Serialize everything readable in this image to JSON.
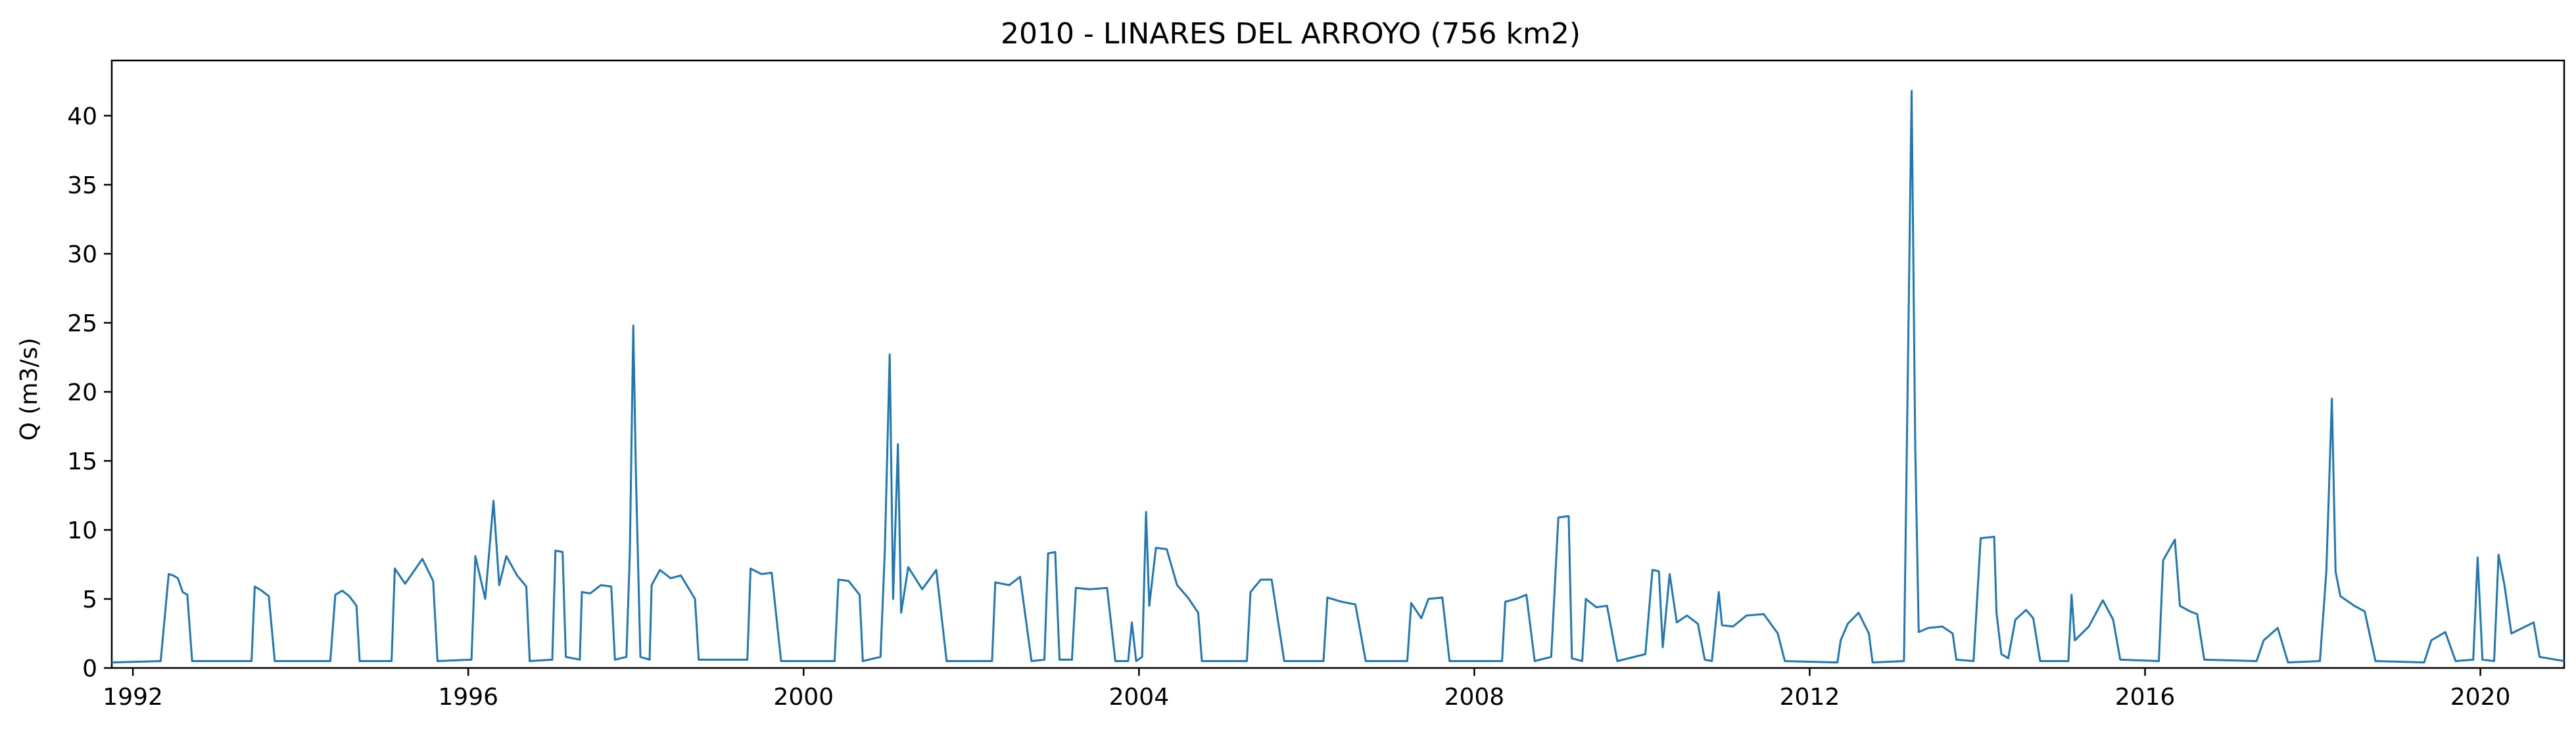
{
  "chart_data": {
    "type": "line",
    "title": "2010 - LINARES DEL ARROYO (756 km2)",
    "xlabel": "",
    "ylabel": "Q (m3/s)",
    "xlim": [
      "1991-10-01",
      "2020-12-31"
    ],
    "ylim": [
      0,
      44
    ],
    "x_tick_labels": [
      "1992",
      "1996",
      "2000",
      "2004",
      "2008",
      "2012",
      "2016",
      "2020"
    ],
    "y_tick_labels": [
      "0",
      "5",
      "10",
      "15",
      "20",
      "25",
      "30",
      "35",
      "40"
    ],
    "grid": false,
    "legend": "none",
    "colors": {
      "line": "#1f77b4",
      "axes": "#000000"
    },
    "series": [
      {
        "name": "",
        "points": [
          [
            "1991-10-01",
            0.4
          ],
          [
            "1992-05-01",
            0.5
          ],
          [
            "1992-06-05",
            6.8
          ],
          [
            "1992-06-25",
            6.7
          ],
          [
            "1992-07-15",
            6.5
          ],
          [
            "1992-08-05",
            5.5
          ],
          [
            "1992-08-25",
            5.3
          ],
          [
            "1992-09-15",
            0.5
          ],
          [
            "1993-06-01",
            0.5
          ],
          [
            "1993-06-15",
            5.9
          ],
          [
            "1993-07-15",
            5.6
          ],
          [
            "1993-08-15",
            5.2
          ],
          [
            "1993-09-10",
            0.5
          ],
          [
            "1994-05-10",
            0.5
          ],
          [
            "1994-06-01",
            5.3
          ],
          [
            "1994-07-01",
            5.6
          ],
          [
            "1994-08-01",
            5.2
          ],
          [
            "1994-09-01",
            4.5
          ],
          [
            "1994-09-15",
            0.5
          ],
          [
            "1995-02-01",
            0.5
          ],
          [
            "1995-02-15",
            7.2
          ],
          [
            "1995-04-01",
            6.1
          ],
          [
            "1995-06-15",
            7.9
          ],
          [
            "1995-08-01",
            6.3
          ],
          [
            "1995-08-20",
            0.5
          ],
          [
            "1996-01-15",
            0.6
          ],
          [
            "1996-02-01",
            8.1
          ],
          [
            "1996-03-15",
            5.0
          ],
          [
            "1996-04-20",
            12.1
          ],
          [
            "1996-05-15",
            6.0
          ],
          [
            "1996-06-15",
            8.1
          ],
          [
            "1996-08-01",
            6.7
          ],
          [
            "1996-09-10",
            5.9
          ],
          [
            "1996-09-25",
            0.5
          ],
          [
            "1997-01-01",
            0.6
          ],
          [
            "1997-01-15",
            8.5
          ],
          [
            "1997-02-15",
            8.4
          ],
          [
            "1997-03-01",
            0.8
          ],
          [
            "1997-05-01",
            0.6
          ],
          [
            "1997-05-10",
            5.5
          ],
          [
            "1997-06-15",
            5.4
          ],
          [
            "1997-08-01",
            6.0
          ],
          [
            "1997-09-15",
            5.9
          ],
          [
            "1997-10-01",
            0.6
          ],
          [
            "1997-11-20",
            0.8
          ],
          [
            "1997-12-05",
            8.4
          ],
          [
            "1997-12-20",
            24.8
          ],
          [
            "1998-01-01",
            13.6
          ],
          [
            "1998-01-20",
            0.8
          ],
          [
            "1998-03-01",
            0.6
          ],
          [
            "1998-03-10",
            6.0
          ],
          [
            "1998-04-15",
            7.1
          ],
          [
            "1998-06-01",
            6.5
          ],
          [
            "1998-07-15",
            6.7
          ],
          [
            "1998-09-15",
            5.0
          ],
          [
            "1998-10-01",
            0.6
          ],
          [
            "1999-05-01",
            0.6
          ],
          [
            "1999-05-15",
            7.2
          ],
          [
            "1999-07-01",
            6.8
          ],
          [
            "1999-08-15",
            6.9
          ],
          [
            "1999-09-25",
            0.5
          ],
          [
            "2000-05-15",
            0.5
          ],
          [
            "2000-06-01",
            6.4
          ],
          [
            "2000-07-15",
            6.3
          ],
          [
            "2000-09-01",
            5.3
          ],
          [
            "2000-09-15",
            0.5
          ],
          [
            "2000-12-01",
            0.8
          ],
          [
            "2000-12-20",
            8.5
          ],
          [
            "2001-01-10",
            22.7
          ],
          [
            "2001-01-25",
            5.0
          ],
          [
            "2001-02-15",
            16.2
          ],
          [
            "2001-03-01",
            4.0
          ],
          [
            "2001-04-01",
            7.3
          ],
          [
            "2001-06-01",
            5.7
          ],
          [
            "2001-08-01",
            7.1
          ],
          [
            "2001-09-15",
            0.5
          ],
          [
            "2002-04-01",
            0.5
          ],
          [
            "2002-04-15",
            6.2
          ],
          [
            "2002-06-15",
            6.0
          ],
          [
            "2002-08-01",
            6.6
          ],
          [
            "2002-09-20",
            0.5
          ],
          [
            "2002-11-15",
            0.6
          ],
          [
            "2002-12-01",
            8.3
          ],
          [
            "2003-01-01",
            8.4
          ],
          [
            "2003-01-20",
            0.6
          ],
          [
            "2003-03-15",
            0.6
          ],
          [
            "2003-04-01",
            5.8
          ],
          [
            "2003-06-01",
            5.7
          ],
          [
            "2003-08-15",
            5.8
          ],
          [
            "2003-09-20",
            0.5
          ],
          [
            "2003-11-15",
            0.5
          ],
          [
            "2003-12-01",
            3.3
          ],
          [
            "2003-12-20",
            0.5
          ],
          [
            "2004-01-15",
            0.8
          ],
          [
            "2004-02-01",
            11.3
          ],
          [
            "2004-02-15",
            4.5
          ],
          [
            "2004-03-15",
            8.7
          ],
          [
            "2004-05-01",
            8.6
          ],
          [
            "2004-06-15",
            6.0
          ],
          [
            "2004-08-01",
            5.1
          ],
          [
            "2004-09-15",
            4.0
          ],
          [
            "2004-10-01",
            0.5
          ],
          [
            "2005-04-15",
            0.5
          ],
          [
            "2005-05-01",
            5.5
          ],
          [
            "2005-06-15",
            6.4
          ],
          [
            "2005-08-01",
            6.4
          ],
          [
            "2005-09-25",
            0.5
          ],
          [
            "2006-03-15",
            0.5
          ],
          [
            "2006-04-01",
            5.1
          ],
          [
            "2006-06-01",
            4.8
          ],
          [
            "2006-08-01",
            4.6
          ],
          [
            "2006-09-15",
            0.5
          ],
          [
            "2007-03-15",
            0.5
          ],
          [
            "2007-04-01",
            4.7
          ],
          [
            "2007-05-15",
            3.6
          ],
          [
            "2007-06-15",
            5.0
          ],
          [
            "2007-08-15",
            5.1
          ],
          [
            "2007-09-15",
            0.5
          ],
          [
            "2008-05-01",
            0.5
          ],
          [
            "2008-05-15",
            4.8
          ],
          [
            "2008-07-01",
            5.0
          ],
          [
            "2008-08-15",
            5.3
          ],
          [
            "2008-09-20",
            0.5
          ],
          [
            "2008-12-01",
            0.8
          ],
          [
            "2009-01-01",
            10.9
          ],
          [
            "2009-02-15",
            11.0
          ],
          [
            "2009-03-01",
            0.7
          ],
          [
            "2009-04-15",
            0.5
          ],
          [
            "2009-05-01",
            5.0
          ],
          [
            "2009-06-15",
            4.4
          ],
          [
            "2009-08-01",
            4.5
          ],
          [
            "2009-09-15",
            0.5
          ],
          [
            "2010-01-15",
            1.0
          ],
          [
            "2010-02-15",
            7.1
          ],
          [
            "2010-03-15",
            7.0
          ],
          [
            "2010-04-01",
            1.5
          ],
          [
            "2010-05-01",
            6.8
          ],
          [
            "2010-06-01",
            3.3
          ],
          [
            "2010-07-15",
            3.8
          ],
          [
            "2010-09-01",
            3.2
          ],
          [
            "2010-10-01",
            0.6
          ],
          [
            "2010-11-01",
            0.5
          ],
          [
            "2010-12-01",
            5.5
          ],
          [
            "2010-12-15",
            3.1
          ],
          [
            "2011-02-01",
            3.0
          ],
          [
            "2011-04-01",
            3.8
          ],
          [
            "2011-06-15",
            3.9
          ],
          [
            "2011-08-15",
            2.5
          ],
          [
            "2011-09-15",
            0.5
          ],
          [
            "2012-05-01",
            0.4
          ],
          [
            "2012-05-15",
            2.0
          ],
          [
            "2012-06-15",
            3.2
          ],
          [
            "2012-08-01",
            4.0
          ],
          [
            "2012-09-15",
            2.5
          ],
          [
            "2012-10-01",
            0.4
          ],
          [
            "2013-02-15",
            0.5
          ],
          [
            "2013-03-01",
            18.0
          ],
          [
            "2013-03-20",
            41.8
          ],
          [
            "2013-04-05",
            16.0
          ],
          [
            "2013-04-20",
            2.6
          ],
          [
            "2013-06-01",
            2.9
          ],
          [
            "2013-08-01",
            3.0
          ],
          [
            "2013-09-15",
            2.5
          ],
          [
            "2013-10-01",
            0.6
          ],
          [
            "2013-12-15",
            0.5
          ],
          [
            "2014-01-15",
            9.4
          ],
          [
            "2014-03-15",
            9.5
          ],
          [
            "2014-03-25",
            4.0
          ],
          [
            "2014-04-15",
            1.0
          ],
          [
            "2014-05-15",
            0.7
          ],
          [
            "2014-06-15",
            3.5
          ],
          [
            "2014-08-01",
            4.2
          ],
          [
            "2014-09-01",
            3.6
          ],
          [
            "2014-10-01",
            0.5
          ],
          [
            "2015-02-01",
            0.5
          ],
          [
            "2015-02-15",
            5.3
          ],
          [
            "2015-03-01",
            2.0
          ],
          [
            "2015-05-01",
            3.0
          ],
          [
            "2015-07-01",
            4.9
          ],
          [
            "2015-08-15",
            3.5
          ],
          [
            "2015-09-15",
            0.6
          ],
          [
            "2016-03-01",
            0.5
          ],
          [
            "2016-03-20",
            7.8
          ],
          [
            "2016-05-10",
            9.3
          ],
          [
            "2016-06-01",
            4.5
          ],
          [
            "2016-07-15",
            4.1
          ],
          [
            "2016-08-15",
            3.9
          ],
          [
            "2016-09-15",
            0.6
          ],
          [
            "2017-05-01",
            0.5
          ],
          [
            "2017-06-01",
            2.0
          ],
          [
            "2017-08-01",
            2.9
          ],
          [
            "2017-09-15",
            0.4
          ],
          [
            "2018-02-01",
            0.5
          ],
          [
            "2018-03-01",
            7.0
          ],
          [
            "2018-03-25",
            19.5
          ],
          [
            "2018-04-10",
            7.0
          ],
          [
            "2018-05-01",
            5.2
          ],
          [
            "2018-07-01",
            4.5
          ],
          [
            "2018-08-15",
            4.1
          ],
          [
            "2018-10-01",
            0.5
          ],
          [
            "2019-05-01",
            0.4
          ],
          [
            "2019-06-01",
            2.0
          ],
          [
            "2019-08-01",
            2.6
          ],
          [
            "2019-09-15",
            0.5
          ],
          [
            "2019-12-01",
            0.6
          ],
          [
            "2019-12-20",
            8.0
          ],
          [
            "2020-01-10",
            0.6
          ],
          [
            "2020-03-01",
            0.5
          ],
          [
            "2020-03-20",
            8.2
          ],
          [
            "2020-04-15",
            6.0
          ],
          [
            "2020-05-15",
            2.5
          ],
          [
            "2020-07-15",
            3.0
          ],
          [
            "2020-08-20",
            3.3
          ],
          [
            "2020-09-15",
            0.8
          ],
          [
            "2020-12-31",
            0.5
          ]
        ]
      }
    ]
  }
}
